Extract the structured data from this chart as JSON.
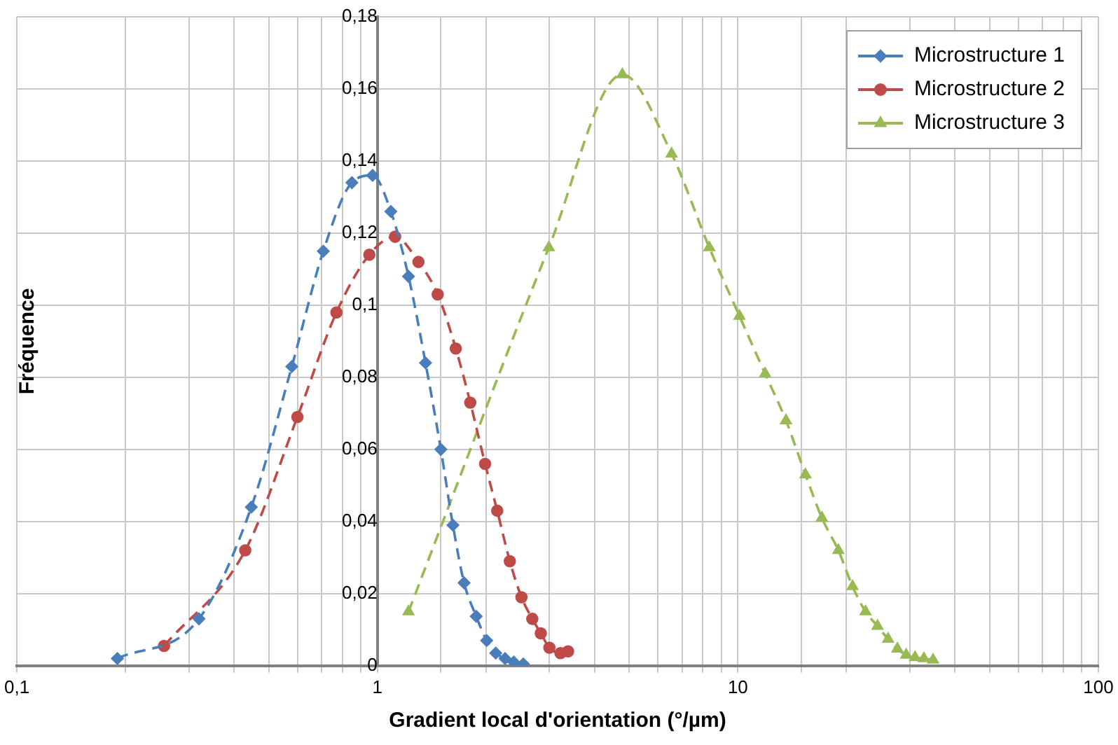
{
  "chart_data": {
    "type": "line",
    "xlabel": "Gradient local d'orientation (°/µm)",
    "ylabel": "Fréquence",
    "log": "x",
    "xlim": [
      0.1,
      100
    ],
    "xticks": [
      {
        "value": 0.1,
        "label": "0,1"
      },
      1,
      10,
      100
    ],
    "ylim": [
      0,
      0.18
    ],
    "yticks": [
      0,
      {
        "value": 0.02,
        "label": "0,02"
      },
      {
        "value": 0.04,
        "label": "0,04"
      },
      {
        "value": 0.06,
        "label": "0,06"
      },
      {
        "value": 0.08,
        "label": "0,08"
      },
      {
        "value": 0.1,
        "label": "0,1"
      },
      {
        "value": 0.12,
        "label": "0,12"
      },
      {
        "value": 0.14,
        "label": "0,14"
      },
      {
        "value": 0.16,
        "label": "0,16"
      },
      {
        "value": 0.18,
        "label": "0,18"
      }
    ],
    "grid": true,
    "legend": "top right",
    "line_style": "dashed",
    "series": [
      {
        "name": "Microstructure 1",
        "color": "#4a7ebb",
        "marker": "diamond",
        "x": [
          0.19,
          0.32,
          0.447,
          0.579,
          0.708,
          0.85,
          0.97,
          1.09,
          1.22,
          1.36,
          1.5,
          1.62,
          1.74,
          1.88,
          2.01,
          2.13,
          2.26,
          2.39,
          2.54
        ],
        "values": [
          0.002,
          0.013,
          0.044,
          0.083,
          0.115,
          0.134,
          0.136,
          0.126,
          0.108,
          0.084,
          0.06,
          0.039,
          0.023,
          0.0137,
          0.007,
          0.0035,
          0.002,
          0.001,
          0.0005
        ]
      },
      {
        "name": "Microstructure 2",
        "color": "#be4b48",
        "marker": "circle",
        "x": [
          0.256,
          0.43,
          0.6,
          0.77,
          0.95,
          1.12,
          1.3,
          1.47,
          1.65,
          1.81,
          1.99,
          2.15,
          2.33,
          2.51,
          2.69,
          2.84,
          3.0,
          3.22,
          3.38
        ],
        "values": [
          0.0055,
          0.032,
          0.069,
          0.098,
          0.114,
          0.119,
          0.112,
          0.103,
          0.088,
          0.073,
          0.056,
          0.043,
          0.029,
          0.019,
          0.013,
          0.009,
          0.005,
          0.0035,
          0.004
        ]
      },
      {
        "name": "Microstructure 3",
        "color": "#98b954",
        "marker": "triangle",
        "x": [
          1.22,
          2.99,
          4.78,
          6.55,
          8.33,
          10.1,
          11.9,
          13.6,
          15.4,
          17.1,
          19.0,
          20.8,
          22.6,
          24.4,
          26.1,
          27.7,
          29.3,
          31.0,
          32.8,
          34.8
        ],
        "values": [
          0.015,
          0.116,
          0.164,
          0.142,
          0.116,
          0.097,
          0.081,
          0.068,
          0.053,
          0.041,
          0.032,
          0.022,
          0.015,
          0.011,
          0.0074,
          0.0047,
          0.003,
          0.0023,
          0.002,
          0.0016
        ]
      }
    ]
  }
}
